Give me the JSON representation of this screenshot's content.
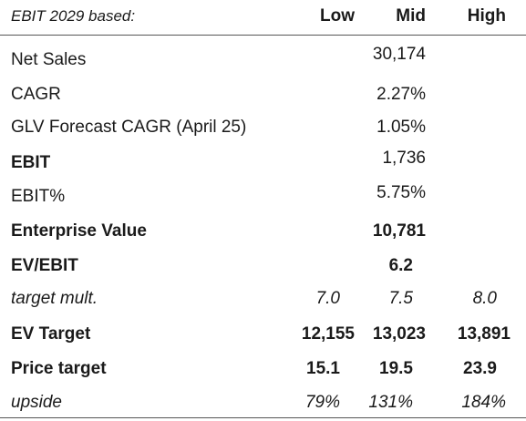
{
  "header": {
    "title": "EBIT 2029 based:",
    "low": "Low",
    "mid": "Mid",
    "high": "High"
  },
  "rows": [
    {
      "label": "Net Sales",
      "low": "",
      "mid": "30,174",
      "high": ""
    },
    {
      "label": "CAGR",
      "low": "",
      "mid": "2.27%",
      "high": ""
    },
    {
      "label": "GLV Forecast CAGR (April 25)",
      "low": "",
      "mid": "1.05%",
      "high": ""
    },
    {
      "label": "EBIT",
      "low": "",
      "mid": "1,736",
      "high": ""
    },
    {
      "label": "EBIT%",
      "low": "",
      "mid": "5.75%",
      "high": ""
    },
    {
      "label": "Enterprise Value",
      "low": "",
      "mid": "10,781",
      "high": ""
    },
    {
      "label": "EV/EBIT",
      "low": "",
      "mid": "6.2",
      "high": ""
    },
    {
      "label": "target mult.",
      "low": "7.0",
      "mid": "7.5",
      "high": "8.0"
    },
    {
      "label": "EV Target",
      "low": "12,155",
      "mid": "13,023",
      "high": "13,891"
    },
    {
      "label": "Price target",
      "low": "15.1",
      "mid": "19.5",
      "high": "23.9"
    },
    {
      "label": "upside",
      "low": "79%",
      "mid": "131%",
      "high": "184%"
    }
  ]
}
